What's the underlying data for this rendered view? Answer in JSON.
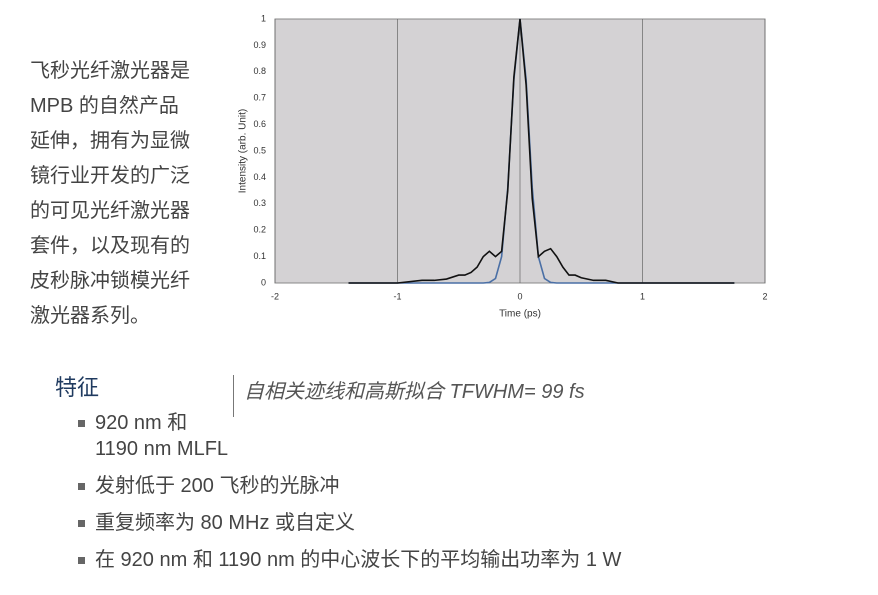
{
  "intro": {
    "lines": [
      "飞秒光纤激光器是",
      "MPB 的自然产品",
      "延伸，拥有为显微",
      "镜行业开发的广泛",
      "的可见光纤激光器",
      "套件，以及现有的",
      "皮秒脉冲锁模光纤",
      "激光器系列。"
    ]
  },
  "chart_data": {
    "type": "line",
    "x_label": "Time (ps)",
    "y_label": "Intensity (arb. Unit)",
    "x": [
      -1.4,
      -1.2,
      -1.0,
      -0.8,
      -0.7,
      -0.6,
      -0.5,
      -0.45,
      -0.4,
      -0.35,
      -0.3,
      -0.25,
      -0.2,
      -0.15,
      -0.1,
      -0.05,
      0,
      0.05,
      0.1,
      0.15,
      0.2,
      0.25,
      0.3,
      0.35,
      0.4,
      0.45,
      0.5,
      0.6,
      0.7,
      0.8,
      1.0,
      1.2,
      1.4,
      1.6,
      1.75
    ],
    "series": [
      {
        "color": "#4a6fa5",
        "values": [
          0,
          0,
          0,
          0,
          0,
          0,
          0,
          0,
          0,
          0,
          0,
          0.002,
          0.017,
          0.1,
          0.36,
          0.77,
          1,
          0.77,
          0.36,
          0.1,
          0.017,
          0.002,
          0,
          0,
          0,
          0,
          0,
          0,
          0,
          0,
          0,
          0,
          0,
          0,
          0
        ]
      },
      {
        "color": "#111111",
        "values": [
          0,
          0,
          0,
          0.01,
          0.01,
          0.015,
          0.03,
          0.03,
          0.04,
          0.06,
          0.1,
          0.12,
          0.1,
          0.12,
          0.35,
          0.78,
          1,
          0.75,
          0.32,
          0.1,
          0.12,
          0.13,
          0.1,
          0.06,
          0.03,
          0.03,
          0.02,
          0.01,
          0.01,
          0,
          0,
          0,
          0,
          0,
          0
        ]
      }
    ],
    "xlim": [
      -2,
      2
    ],
    "ylim": [
      0,
      1
    ],
    "xticks": [
      -2,
      -1,
      0,
      1,
      2
    ],
    "yticks": [
      0,
      0.1,
      0.2,
      0.3,
      0.4,
      0.5,
      0.6,
      0.7,
      0.8,
      0.9,
      1
    ],
    "grid": "x"
  },
  "caption": "自相关迹线和高斯拟合 TFWHM= 99 fs",
  "features": {
    "title": "特征",
    "items": [
      [
        "920 nm 和",
        "1190 nm MLFL"
      ],
      [
        "发射低于 200 飞秒的光脉冲"
      ],
      [
        "重复频率为 80 MHz 或自定义"
      ],
      [
        "在 920 nm 和 1190 nm 的中心波长下的平均输出功率为 1 W"
      ]
    ]
  }
}
